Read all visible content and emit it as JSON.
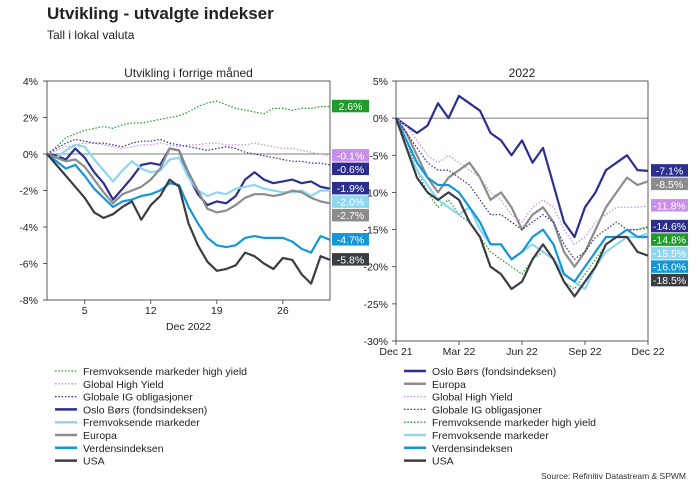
{
  "header": {
    "title": "Utvikling - utvalgte indekser",
    "subtitle": "Tall i lokal valuta"
  },
  "source": "Source: Refinitiv Datastream & SPWM",
  "colors": {
    "fremvoksende_hy": "#1f9a2b",
    "global_hy": "#c98ee8",
    "globale_ig": "#2c2c8c",
    "oslo_bors": "#2b2f8f",
    "fremvoksende": "#8fd6f0",
    "europa": "#8c8c8c",
    "verdensindeksen": "#1596d6",
    "usa": "#3a3d44",
    "zero_line": "#555555"
  },
  "chart_data": [
    {
      "type": "line",
      "title": "Utvikling i forrige måned",
      "xlabel": "Dec 2022",
      "ylim": [
        -8,
        4
      ],
      "yticks": [
        -8,
        -6,
        -4,
        -2,
        0,
        2,
        4
      ],
      "ytick_labels": [
        "-8%",
        "-6%",
        "-4%",
        "-2%",
        "0%",
        "2%",
        "4%"
      ],
      "xlim": [
        1,
        31
      ],
      "xticks": [
        5,
        12,
        19,
        26
      ],
      "xtick_labels": [
        "5",
        "12",
        "19",
        "26"
      ],
      "x": [
        1,
        2,
        3,
        4,
        5,
        6,
        7,
        8,
        9,
        10,
        11,
        12,
        13,
        14,
        15,
        16,
        17,
        18,
        19,
        20,
        21,
        22,
        23,
        24,
        25,
        26,
        27,
        28,
        29,
        30,
        31
      ],
      "series": [
        {
          "name": "Fremvoksende markeder high yield",
          "color_key": "fremvoksende_hy",
          "dash": "dot",
          "end_label": "2.6%",
          "values": [
            0,
            0.4,
            0.9,
            1.1,
            1.3,
            1.4,
            1.5,
            1.4,
            1.6,
            1.7,
            1.7,
            1.8,
            1.9,
            2.0,
            2.1,
            2.3,
            2.6,
            2.8,
            2.9,
            2.7,
            2.5,
            2.4,
            2.3,
            2.2,
            2.5,
            2.5,
            2.4,
            2.5,
            2.5,
            2.6,
            2.6
          ]
        },
        {
          "name": "Global High Yield",
          "color_key": "global_hy",
          "dash": "dot",
          "end_label": "-0.1%",
          "values": [
            0,
            0.2,
            0.4,
            0.5,
            0.6,
            0.6,
            0.5,
            0.4,
            0.3,
            0.4,
            0.5,
            0.5,
            0.6,
            0.5,
            0.4,
            0.5,
            0.5,
            0.6,
            0.6,
            0.5,
            0.5,
            0.5,
            0.6,
            0.5,
            0.4,
            0.3,
            0.3,
            0.2,
            0.1,
            0.0,
            -0.1
          ]
        },
        {
          "name": "Globale IG obligasjoner",
          "color_key": "globale_ig",
          "dash": "dot",
          "end_label": "-0.6%",
          "values": [
            0,
            0.3,
            0.6,
            0.8,
            0.7,
            0.6,
            0.6,
            0.5,
            0.4,
            0.6,
            0.7,
            0.7,
            0.8,
            0.6,
            0.5,
            0.4,
            0.3,
            0.2,
            0.3,
            0.4,
            0.3,
            0.1,
            0.0,
            -0.1,
            -0.2,
            -0.3,
            -0.4,
            -0.4,
            -0.5,
            -0.5,
            -0.6
          ]
        },
        {
          "name": "Oslo Børs (fondsindeksen)",
          "color_key": "oslo_bors",
          "dash": "solid",
          "end_label": "-1.9%",
          "values": [
            0,
            -0.1,
            -0.3,
            0.3,
            -0.2,
            -1.0,
            -1.6,
            -2.5,
            -1.9,
            -1.3,
            -0.6,
            -0.5,
            -0.6,
            0.3,
            0.2,
            -1.2,
            -2.2,
            -2.8,
            -2.6,
            -2.7,
            -2.3,
            -1.4,
            -1.0,
            -1.4,
            -1.6,
            -1.5,
            -1.4,
            -1.6,
            -1.5,
            -1.8,
            -1.9
          ]
        },
        {
          "name": "Fremvoksende markeder",
          "color_key": "fremvoksende",
          "dash": "solid",
          "end_label": "-2.0%",
          "values": [
            0,
            -0.2,
            0.2,
            0.5,
            0.4,
            -0.3,
            -0.9,
            -1.5,
            -0.9,
            -0.4,
            -0.8,
            -1.0,
            -0.9,
            -0.3,
            -0.2,
            -1.3,
            -2.0,
            -2.3,
            -2.1,
            -2.2,
            -1.9,
            -1.8,
            -1.7,
            -1.9,
            -2.0,
            -2.1,
            -2.1,
            -2.0,
            -2.3,
            -2.0,
            -2.0
          ]
        },
        {
          "name": "Europa",
          "color_key": "europa",
          "dash": "solid",
          "end_label": "-2.7%",
          "values": [
            0,
            -0.2,
            -0.4,
            -0.3,
            -0.7,
            -1.4,
            -2.1,
            -2.7,
            -2.2,
            -2.0,
            -1.8,
            -1.4,
            -0.8,
            0.3,
            0.2,
            -1.0,
            -2.0,
            -3.0,
            -3.2,
            -3.1,
            -2.8,
            -2.4,
            -2.2,
            -2.2,
            -2.3,
            -2.2,
            -2.0,
            -2.1,
            -2.4,
            -2.6,
            -2.7
          ]
        },
        {
          "name": "Verdensindeksen",
          "color_key": "verdensindeksen",
          "dash": "solid",
          "end_label": "-4.7%",
          "values": [
            0,
            -0.4,
            -0.8,
            -0.6,
            -1.2,
            -1.9,
            -2.4,
            -2.9,
            -2.6,
            -2.5,
            -2.3,
            -2.2,
            -2.0,
            -1.6,
            -1.7,
            -2.9,
            -3.8,
            -4.6,
            -5.0,
            -5.1,
            -5.0,
            -4.6,
            -4.5,
            -4.6,
            -4.6,
            -4.6,
            -4.8,
            -5.2,
            -5.4,
            -4.5,
            -4.7
          ]
        },
        {
          "name": "USA",
          "color_key": "usa",
          "dash": "solid",
          "end_label": "-5.8%",
          "values": [
            0,
            -0.6,
            -1.2,
            -1.8,
            -2.4,
            -3.2,
            -3.5,
            -3.3,
            -2.9,
            -2.6,
            -3.6,
            -2.8,
            -2.3,
            -1.4,
            -1.8,
            -3.8,
            -5.0,
            -5.9,
            -6.4,
            -6.3,
            -6.1,
            -5.4,
            -5.6,
            -6.0,
            -6.3,
            -5.7,
            -5.8,
            -6.6,
            -7.1,
            -5.6,
            -5.8
          ]
        }
      ]
    },
    {
      "type": "line",
      "title": "2022",
      "ylim": [
        -30,
        5
      ],
      "yticks": [
        -30,
        -25,
        -20,
        -15,
        -10,
        -5,
        0,
        5
      ],
      "ytick_labels": [
        "-30%",
        "-25%",
        "-20%",
        "-15%",
        "-10%",
        "-5%",
        "0%",
        "5%"
      ],
      "xlim": [
        0,
        12
      ],
      "xticks": [
        0,
        3,
        6,
        9,
        12
      ],
      "xtick_labels": [
        "Dec 21",
        "Mar 22",
        "Jun 22",
        "Sep 22",
        "Dec 22"
      ],
      "x": [
        0,
        0.5,
        1,
        1.5,
        2,
        2.5,
        3,
        3.5,
        4,
        4.5,
        5,
        5.5,
        6,
        6.5,
        7,
        7.5,
        8,
        8.5,
        9,
        9.5,
        10,
        10.5,
        11,
        11.5,
        12
      ],
      "series": [
        {
          "name": "Oslo Børs (fondsindeksen)",
          "color_key": "oslo_bors",
          "dash": "solid",
          "end_label": "-7.1%",
          "values": [
            0,
            -1,
            -2,
            -1,
            2,
            0,
            3,
            2,
            1,
            -2,
            -3,
            -5,
            -3,
            -6,
            -4,
            -9,
            -14,
            -16,
            -12,
            -10,
            -7,
            -6,
            -5,
            -7,
            -7.1
          ]
        },
        {
          "name": "Europa",
          "color_key": "europa",
          "dash": "solid",
          "end_label": "-8.5%",
          "values": [
            0,
            -2,
            -5,
            -8,
            -10,
            -8,
            -7,
            -6,
            -8,
            -11,
            -10,
            -12,
            -15,
            -13,
            -12,
            -14,
            -18,
            -20,
            -18,
            -15,
            -12,
            -10,
            -8,
            -9,
            -8.5
          ]
        },
        {
          "name": "Global High Yield",
          "color_key": "global_hy",
          "dash": "dot",
          "end_label": "-11.8%",
          "values": [
            0,
            -1,
            -3,
            -5,
            -6,
            -5,
            -6,
            -7,
            -8,
            -10,
            -11,
            -13,
            -14,
            -12,
            -11,
            -12,
            -15,
            -17,
            -16,
            -14,
            -13,
            -12,
            -12,
            -12,
            -11.8
          ]
        },
        {
          "name": "Globale IG obligasjoner",
          "color_key": "globale_ig",
          "dash": "dot",
          "end_label": "-14.6%",
          "values": [
            0,
            -2,
            -4,
            -6,
            -7,
            -7,
            -8,
            -9,
            -11,
            -13,
            -13,
            -14,
            -15,
            -14,
            -13,
            -14,
            -17,
            -19,
            -18,
            -16,
            -15,
            -14,
            -15,
            -15,
            -14.6
          ]
        },
        {
          "name": "Fremvoksende markeder high yield",
          "color_key": "fremvoksende_hy",
          "dash": "dot",
          "end_label": "-14.8%",
          "values": [
            0,
            -3,
            -7,
            -10,
            -12,
            -11,
            -13,
            -14,
            -16,
            -18,
            -19,
            -20,
            -21,
            -19,
            -18,
            -19,
            -22,
            -23,
            -21,
            -19,
            -17,
            -16,
            -15,
            -15,
            -14.8
          ]
        },
        {
          "name": "Fremvoksende markeder",
          "color_key": "fremvoksende",
          "dash": "solid",
          "end_label": "-15.5%",
          "values": [
            0,
            -4,
            -7,
            -9,
            -11,
            -12,
            -13,
            -12,
            -15,
            -17,
            -17,
            -19,
            -18,
            -17,
            -18,
            -19,
            -21,
            -22,
            -23,
            -20,
            -18,
            -17,
            -16,
            -16,
            -15.5
          ]
        },
        {
          "name": "Verdensindeksen",
          "color_key": "verdensindeksen",
          "dash": "solid",
          "end_label": "-16.0%",
          "values": [
            0,
            -3,
            -6,
            -8,
            -9,
            -9,
            -10,
            -12,
            -14,
            -17,
            -17,
            -19,
            -18,
            -16,
            -15,
            -17,
            -21,
            -22,
            -20,
            -18,
            -16,
            -16,
            -15,
            -16,
            -16.0
          ]
        },
        {
          "name": "USA",
          "color_key": "usa",
          "dash": "solid",
          "end_label": "-18.5%",
          "values": [
            0,
            -4,
            -8,
            -10,
            -11,
            -10,
            -11,
            -14,
            -16,
            -20,
            -21,
            -23,
            -22,
            -19,
            -17,
            -19,
            -22,
            -24,
            -22,
            -20,
            -17,
            -16,
            -16,
            -18,
            -18.5
          ]
        }
      ]
    }
  ]
}
